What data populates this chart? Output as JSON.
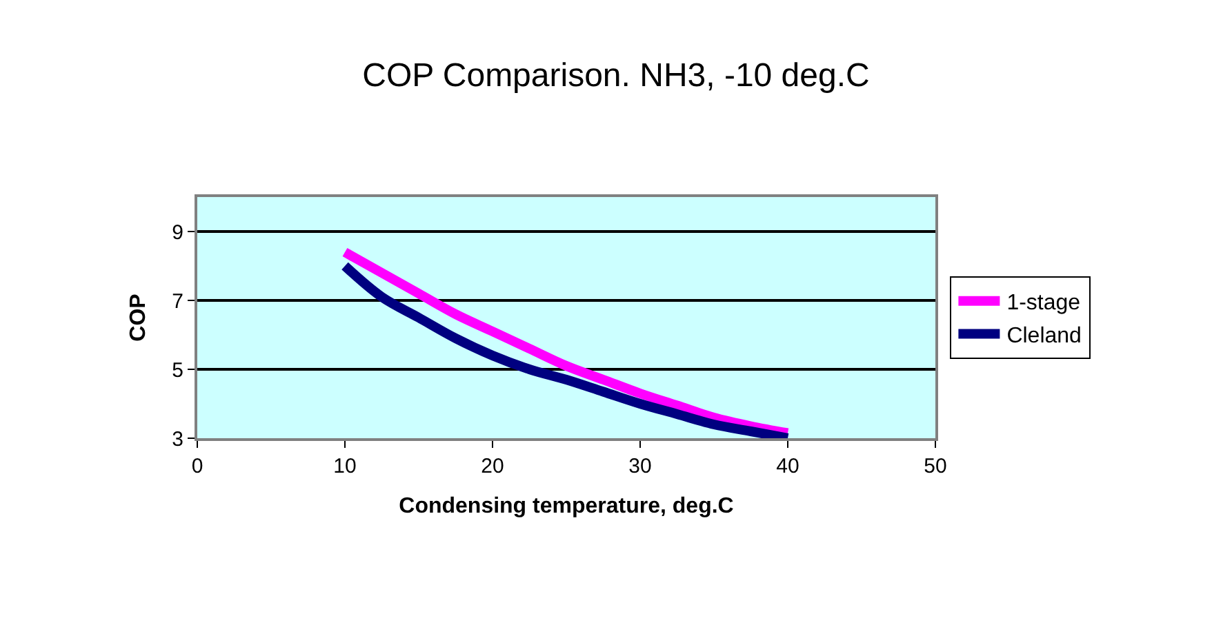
{
  "chart_data": {
    "type": "line",
    "title": "COP Comparison. NH3, -10 deg.C",
    "xlabel": "Condensing temperature, deg.C",
    "ylabel": "COP",
    "x": [
      10,
      12.5,
      15,
      17.5,
      20,
      22.5,
      25,
      27.5,
      30,
      32.5,
      35,
      37.5,
      40
    ],
    "series": [
      {
        "name": "1-stage",
        "color": "#ff00ff",
        "values": [
          8.4,
          7.8,
          7.2,
          6.6,
          6.1,
          5.6,
          5.1,
          4.7,
          4.3,
          3.95,
          3.6,
          3.35,
          3.15
        ]
      },
      {
        "name": "Cleland",
        "color": "#000080",
        "values": [
          8.0,
          7.1,
          6.5,
          5.9,
          5.4,
          5.0,
          4.7,
          4.35,
          4.0,
          3.7,
          3.4,
          3.2,
          3.0
        ]
      }
    ],
    "xlim": [
      0,
      50
    ],
    "xticks": [
      0,
      10,
      20,
      30,
      40,
      50
    ],
    "ylim": [
      3,
      10
    ],
    "yticks": [
      3,
      5,
      7,
      9
    ],
    "grid": "y",
    "legend": "right",
    "marker": "none",
    "line_style": "solid"
  }
}
